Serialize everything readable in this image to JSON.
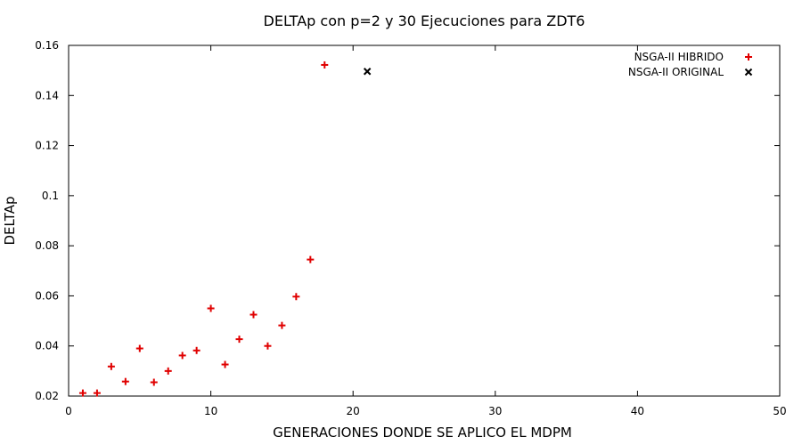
{
  "chart_data": {
    "type": "scatter",
    "title": "DELTAp con p=2 y 30 Ejecuciones para ZDT6",
    "xlabel": "GENERACIONES DONDE SE APLICO EL MDPM",
    "ylabel": "DELTAp",
    "xlim": [
      0,
      50
    ],
    "ylim": [
      0.02,
      0.16
    ],
    "xticks": [
      "0",
      "10",
      "20",
      "30",
      "40",
      "50"
    ],
    "yticks": [
      "0.02",
      "0.04",
      "0.06",
      "0.08",
      "0.1",
      "0.12",
      "0.14",
      "0.16"
    ],
    "legend_position": "top-right",
    "grid": false,
    "series": [
      {
        "name": "NSGA-II HIBRIDO",
        "marker": "plus",
        "color": "#e00000",
        "points": [
          [
            1,
            0.0212
          ],
          [
            2,
            0.0212
          ],
          [
            3,
            0.0318
          ],
          [
            4,
            0.0258
          ],
          [
            5,
            0.039
          ],
          [
            6,
            0.0255
          ],
          [
            7,
            0.03
          ],
          [
            8,
            0.0362
          ],
          [
            9,
            0.0382
          ],
          [
            10,
            0.055
          ],
          [
            11,
            0.0326
          ],
          [
            12,
            0.0427
          ],
          [
            13,
            0.0525
          ],
          [
            14,
            0.04
          ],
          [
            15,
            0.0482
          ],
          [
            16,
            0.0597
          ],
          [
            17,
            0.0745
          ],
          [
            18,
            0.1522
          ]
        ]
      },
      {
        "name": "NSGA-II ORIGINAL",
        "marker": "cross",
        "color": "#000000",
        "points": [
          [
            21,
            0.1496
          ]
        ]
      }
    ]
  }
}
